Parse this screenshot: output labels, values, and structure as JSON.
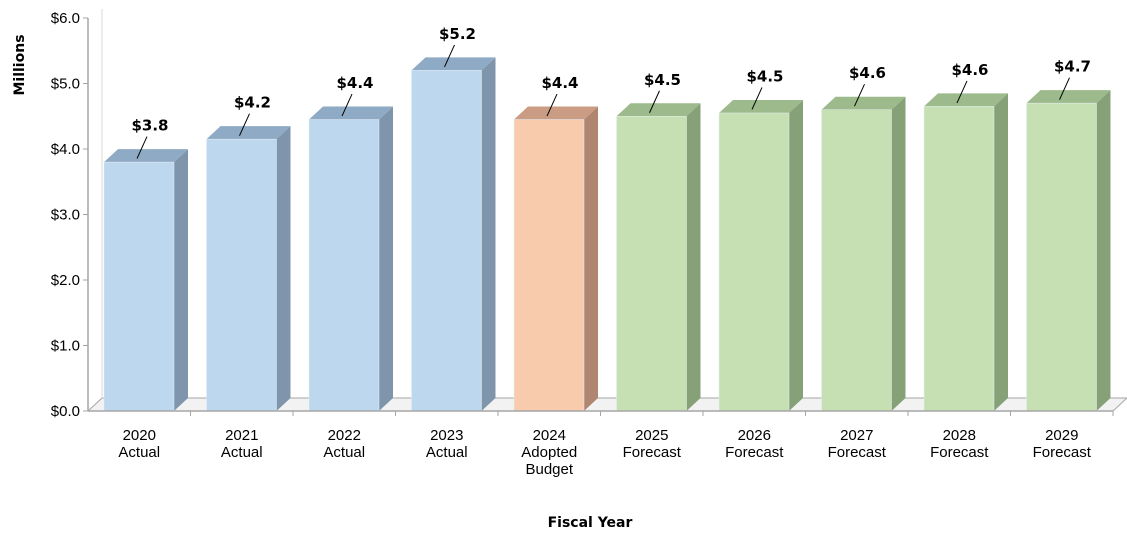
{
  "chart_data": {
    "type": "bar",
    "title": "",
    "xlabel": "Fiscal Year",
    "ylabel": "Millions",
    "ylim": [
      0,
      6
    ],
    "yticks": [
      "$0.0",
      "$1.0",
      "$2.0",
      "$3.0",
      "$4.0",
      "$5.0",
      "$6.0"
    ],
    "categories": [
      [
        "2020",
        "Actual"
      ],
      [
        "2021",
        "Actual"
      ],
      [
        "2022",
        "Actual"
      ],
      [
        "2023",
        "Actual"
      ],
      [
        "2024",
        "Adopted",
        "Budget"
      ],
      [
        "2025",
        "Forecast"
      ],
      [
        "2026",
        "Forecast"
      ],
      [
        "2027",
        "Forecast"
      ],
      [
        "2028",
        "Forecast"
      ],
      [
        "2029",
        "Forecast"
      ]
    ],
    "values": [
      3.8,
      4.15,
      4.45,
      5.2,
      4.45,
      4.5,
      4.55,
      4.6,
      4.65,
      4.7
    ],
    "data_labels": [
      "$3.8",
      "$4.2",
      "$4.4",
      "$5.2",
      "$4.4",
      "$4.5",
      "$4.5",
      "$4.6",
      "$4.6",
      "$4.7"
    ],
    "bar_kinds": [
      "actual",
      "actual",
      "actual",
      "actual",
      "budget",
      "forecast",
      "forecast",
      "forecast",
      "forecast",
      "forecast"
    ],
    "colors": {
      "actual": {
        "front": "#bdd7ee",
        "side": "#7f95ab",
        "top": "#8eaac4"
      },
      "budget": {
        "front": "#f8cbad",
        "side": "#b08670",
        "top": "#c99c83"
      },
      "forecast": {
        "front": "#c6e0b4",
        "side": "#86a078",
        "top": "#9cba8b"
      },
      "axis": "#a6a6a6",
      "floor": "#d9d9d9"
    },
    "grid": false,
    "legend": "none"
  }
}
